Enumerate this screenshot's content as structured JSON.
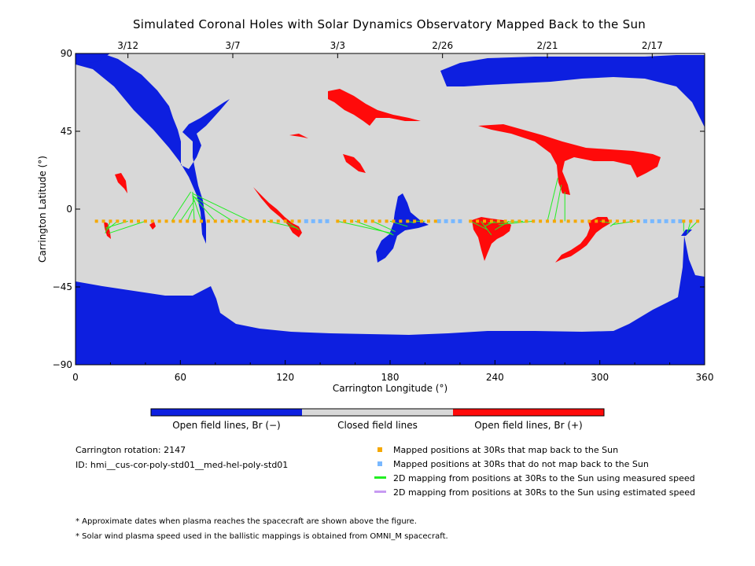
{
  "chart_data": {
    "type": "map",
    "title": "Simulated Coronal Holes with Solar Dynamics Observatory Mapped Back to the Sun",
    "xlabel": "Carrington Longitude (°)",
    "ylabel": "Carrington Latitude (°)",
    "xlim": [
      0,
      360
    ],
    "ylim": [
      -90,
      90
    ],
    "xticks": [
      0,
      60,
      120,
      180,
      240,
      300,
      360
    ],
    "xtick_labels": [
      "0",
      "60",
      "120",
      "180",
      "240",
      "300",
      "360"
    ],
    "yticks": [
      90,
      45,
      0,
      -45,
      -90
    ],
    "ytick_labels": [
      "90",
      "45",
      "0",
      "−45",
      "−90"
    ],
    "top_dates": [
      {
        "lon": 30,
        "label": "3/12"
      },
      {
        "lon": 90,
        "label": "3/7"
      },
      {
        "lon": 150,
        "label": "3/3"
      },
      {
        "lon": 210,
        "label": "2/26"
      },
      {
        "lon": 270,
        "label": "2/21"
      },
      {
        "lon": 330,
        "label": "2/17"
      }
    ],
    "colorbar": [
      {
        "label": "Open field lines, Br (−)",
        "color": "#0d1fe0"
      },
      {
        "label": "Closed field lines",
        "color": "#d8d8d8"
      },
      {
        "label": "Open field lines, Br (+)",
        "color": "#ff0a0a"
      }
    ],
    "spacecraft_latitude": -7,
    "mapped_positions_lon": [
      12,
      16,
      20,
      24,
      28,
      32,
      36,
      40,
      44,
      48,
      52,
      56,
      60,
      64,
      68,
      72,
      76,
      80,
      84,
      88,
      92,
      96,
      100,
      104,
      108,
      112,
      116,
      120,
      124,
      128,
      150,
      154,
      158,
      162,
      166,
      170,
      174,
      178,
      182,
      186,
      190,
      194,
      198,
      202,
      206,
      226,
      230,
      234,
      238,
      242,
      246,
      250,
      254,
      258,
      262,
      266,
      270,
      274,
      278,
      282,
      286,
      290,
      294,
      298,
      302,
      306,
      310,
      314,
      318,
      322,
      348,
      352,
      356
    ],
    "unmapped_positions_lon": [
      132,
      136,
      140,
      144,
      208,
      212,
      216,
      220,
      326,
      330,
      334,
      338,
      342,
      346
    ],
    "measured_mappings": [
      [
        20,
        -7,
        17,
        -14
      ],
      [
        24,
        -7,
        18,
        -12
      ],
      [
        30,
        -7,
        17,
        -11
      ],
      [
        40,
        -7,
        19,
        -14
      ],
      [
        55,
        -7,
        66,
        10
      ],
      [
        60,
        -7,
        68,
        5
      ],
      [
        64,
        -7,
        67,
        0
      ],
      [
        68,
        -7,
        67,
        10
      ],
      [
        72,
        -7,
        67,
        8
      ],
      [
        80,
        -7,
        67,
        8
      ],
      [
        90,
        -7,
        68,
        7
      ],
      [
        100,
        -7,
        67,
        9
      ],
      [
        120,
        -7,
        128,
        -12
      ],
      [
        110,
        -7,
        127,
        -11
      ],
      [
        150,
        -7,
        181,
        -14
      ],
      [
        160,
        -7,
        182,
        -15
      ],
      [
        170,
        -7,
        183,
        -13
      ],
      [
        180,
        -7,
        190,
        -10
      ],
      [
        190,
        -7,
        194,
        -8
      ],
      [
        200,
        -7,
        195,
        -7
      ],
      [
        226,
        -7,
        236,
        -12
      ],
      [
        232,
        -7,
        238,
        -15
      ],
      [
        240,
        -7,
        234,
        -10
      ],
      [
        248,
        -7,
        240,
        -12
      ],
      [
        256,
        -7,
        236,
        -8
      ],
      [
        262,
        -7,
        242,
        -9
      ],
      [
        270,
        -7,
        276,
        18
      ],
      [
        274,
        -7,
        278,
        14
      ],
      [
        280,
        -7,
        280,
        10
      ],
      [
        300,
        -7,
        306,
        -8
      ],
      [
        310,
        -7,
        306,
        -10
      ],
      [
        320,
        -7,
        307,
        -9
      ],
      [
        348,
        -7,
        348,
        -13
      ],
      [
        352,
        -7,
        350,
        -14
      ],
      [
        356,
        -7,
        351,
        -12
      ]
    ],
    "legend": [
      {
        "label": "Mapped positions at 30Rs that map back to the Sun",
        "color": "#f5a800",
        "kind": "square"
      },
      {
        "label": "Mapped positions at 30Rs that do not map back to the Sun",
        "color": "#79b8ff",
        "kind": "square"
      },
      {
        "label": "2D mapping from positions at 30Rs to the Sun using measured speed",
        "color": "#22ee22",
        "kind": "line"
      },
      {
        "label": "2D mapping from positions at 30Rs to the Sun using estimated speed",
        "color": "#c79af2",
        "kind": "line"
      }
    ]
  },
  "info": {
    "rotation": "Carrington rotation: 2147",
    "id": "ID: hmi__cus-cor-poly-std01__med-hel-poly-std01"
  },
  "notes": [
    "* Approximate dates when plasma reaches the spacecraft are shown above the figure.",
    "* Solar wind plasma speed used in the ballistic mappings is obtained from OMNI_M spacecraft."
  ]
}
